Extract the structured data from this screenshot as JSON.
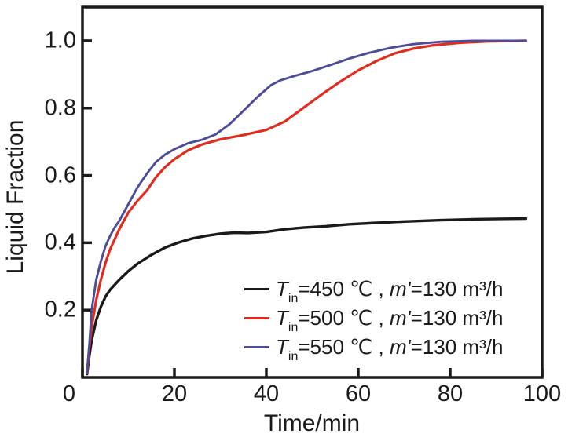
{
  "chart_data": {
    "type": "line",
    "xlabel": "Time/min",
    "ylabel": "Liquid Fraction",
    "xlim": [
      0,
      100
    ],
    "ylim": [
      0,
      1.1
    ],
    "x_ticks": [
      0,
      20,
      40,
      60,
      80,
      100
    ],
    "x_tick_labels": [
      "0",
      "20",
      "40",
      "60",
      "80",
      "100"
    ],
    "y_ticks": [
      0.2,
      0.4,
      0.6,
      0.8,
      1.0
    ],
    "y_tick_labels": [
      "0.2",
      "0.4",
      "0.6",
      "0.8",
      "1.0"
    ],
    "grid": false,
    "legend_position": "inside lower right",
    "frame_color": "#1a1a1a",
    "tick_direction": "in",
    "series": [
      {
        "id": "450",
        "name": "Tin=450 ℃, m'=130 m³/h",
        "color": "#1a1a1a",
        "width": 3.4,
        "x": [
          1,
          1.5,
          2,
          3,
          4,
          5,
          6,
          8,
          10,
          12,
          15,
          18,
          21,
          24,
          27,
          30,
          33,
          36,
          40,
          44,
          48,
          53,
          58,
          64,
          70,
          78,
          86,
          96.5
        ],
        "y": [
          0.01,
          0.065,
          0.11,
          0.17,
          0.21,
          0.24,
          0.26,
          0.29,
          0.316,
          0.338,
          0.364,
          0.386,
          0.401,
          0.413,
          0.421,
          0.427,
          0.43,
          0.429,
          0.432,
          0.44,
          0.445,
          0.449,
          0.455,
          0.459,
          0.463,
          0.467,
          0.47,
          0.472
        ]
      },
      {
        "id": "500",
        "name": "Tin=500 ℃, m'=130 m³/h",
        "color": "#e02c1f",
        "width": 3.2,
        "x": [
          1,
          1.5,
          2,
          3,
          4,
          5,
          6,
          8,
          10,
          12,
          14,
          16,
          18,
          20,
          23,
          26,
          30,
          35,
          40,
          44,
          48,
          52,
          56,
          60,
          64,
          68,
          72,
          76,
          82,
          88,
          96.5
        ],
        "y": [
          0.015,
          0.09,
          0.15,
          0.23,
          0.29,
          0.34,
          0.38,
          0.44,
          0.49,
          0.525,
          0.555,
          0.595,
          0.625,
          0.648,
          0.675,
          0.692,
          0.707,
          0.72,
          0.735,
          0.76,
          0.8,
          0.84,
          0.878,
          0.912,
          0.94,
          0.963,
          0.977,
          0.986,
          0.994,
          0.998,
          1.0
        ]
      },
      {
        "id": "550",
        "name": "Tin=550 ℃, m'=130 m³/h",
        "color": "#4c4c9b",
        "width": 2.9,
        "x": [
          1,
          1.5,
          2,
          3,
          4,
          5,
          6,
          7,
          8,
          10,
          12,
          14,
          16,
          18,
          20,
          23,
          26,
          29,
          32,
          35,
          38,
          41,
          43,
          46,
          50,
          54,
          58,
          62,
          67,
          72,
          78,
          85,
          96.5
        ],
        "y": [
          0.015,
          0.1,
          0.2,
          0.29,
          0.345,
          0.39,
          0.42,
          0.445,
          0.465,
          0.515,
          0.565,
          0.605,
          0.64,
          0.662,
          0.678,
          0.696,
          0.706,
          0.722,
          0.752,
          0.792,
          0.832,
          0.868,
          0.882,
          0.895,
          0.91,
          0.928,
          0.947,
          0.963,
          0.979,
          0.99,
          0.997,
          1.0,
          1.0
        ]
      }
    ]
  },
  "legend": {
    "items": [
      {
        "t": "T",
        "t_sub": "in",
        "mid": "=450 ℃ , ",
        "m": "m'",
        "tail": "=130 m³/h"
      },
      {
        "t": "T",
        "t_sub": "in",
        "mid": "=500 ℃ , ",
        "m": "m'",
        "tail": "=130 m³/h"
      },
      {
        "t": "T",
        "t_sub": "in",
        "mid": "=550 ℃ , ",
        "m": "m'",
        "tail": "=130 m³/h"
      }
    ]
  }
}
